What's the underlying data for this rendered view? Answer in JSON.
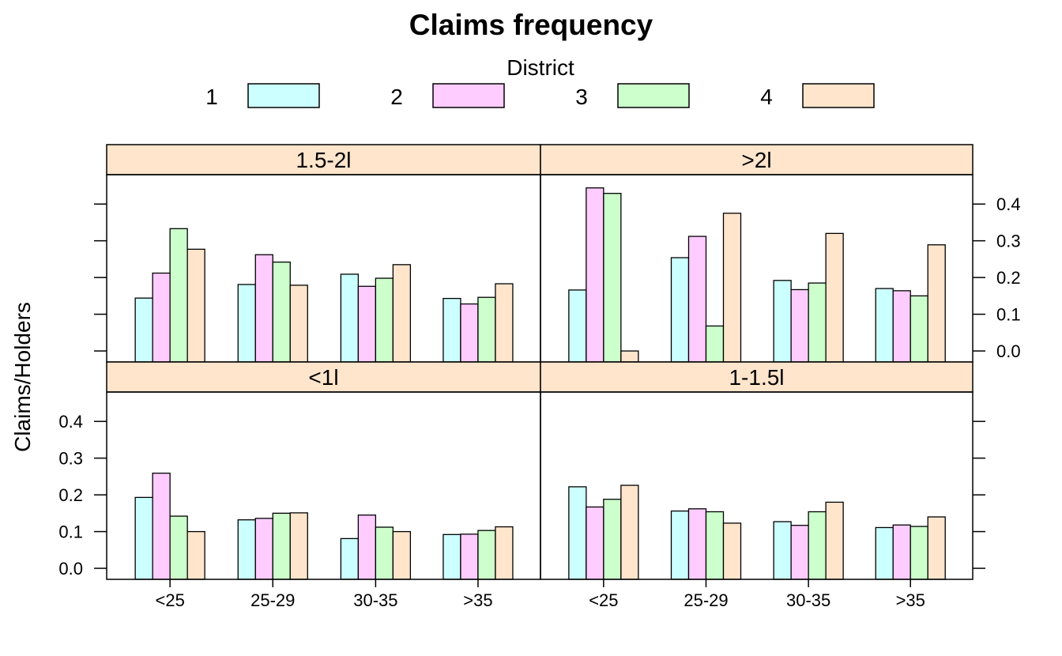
{
  "chart_data": {
    "type": "bar",
    "title": "Claims frequency",
    "ylabel": "Claims/Holders",
    "xlabel": "",
    "ylim": [
      -0.03,
      0.48
    ],
    "yticks": [
      0.0,
      0.1,
      0.2,
      0.3,
      0.4
    ],
    "ytick_labels": [
      "0.0",
      "0.1",
      "0.2",
      "0.3",
      "0.4"
    ],
    "grid": false,
    "legend": {
      "title": "District",
      "placement": "top",
      "entries": [
        "1",
        "2",
        "3",
        "4"
      ]
    },
    "colors": [
      "#ccffff",
      "#ffccff",
      "#ccffcc",
      "#ffe5cc"
    ],
    "strip_color": "#ffe5cc",
    "categories": [
      "<25",
      "25-29",
      "30-35",
      ">35"
    ],
    "panels": [
      {
        "label": "1.5-2l",
        "series": [
          {
            "name": "1",
            "values": [
              0.144,
              0.181,
              0.209,
              0.143
            ]
          },
          {
            "name": "2",
            "values": [
              0.212,
              0.262,
              0.176,
              0.128
            ]
          },
          {
            "name": "3",
            "values": [
              0.333,
              0.242,
              0.198,
              0.146
            ]
          },
          {
            "name": "4",
            "values": [
              0.277,
              0.179,
              0.235,
              0.183
            ]
          }
        ]
      },
      {
        "label": ">2l",
        "series": [
          {
            "name": "1",
            "values": [
              0.166,
              0.254,
              0.192,
              0.17
            ]
          },
          {
            "name": "2",
            "values": [
              0.444,
              0.312,
              0.167,
              0.164
            ]
          },
          {
            "name": "3",
            "values": [
              0.429,
              0.068,
              0.185,
              0.15
            ]
          },
          {
            "name": "4",
            "values": [
              0.0,
              0.375,
              0.32,
              0.289
            ]
          }
        ]
      },
      {
        "label": "<1l",
        "series": [
          {
            "name": "1",
            "values": [
              0.193,
              0.132,
              0.081,
              0.092
            ]
          },
          {
            "name": "2",
            "values": [
              0.259,
              0.136,
              0.145,
              0.093
            ]
          },
          {
            "name": "3",
            "values": [
              0.142,
              0.15,
              0.112,
              0.103
            ]
          },
          {
            "name": "4",
            "values": [
              0.1,
              0.151,
              0.1,
              0.113
            ]
          }
        ]
      },
      {
        "label": "1-1.5l",
        "series": [
          {
            "name": "1",
            "values": [
              0.222,
              0.156,
              0.127,
              0.111
            ]
          },
          {
            "name": "2",
            "values": [
              0.167,
              0.162,
              0.117,
              0.118
            ]
          },
          {
            "name": "3",
            "values": [
              0.188,
              0.154,
              0.154,
              0.114
            ]
          },
          {
            "name": "4",
            "values": [
              0.226,
              0.123,
              0.18,
              0.14
            ]
          }
        ]
      }
    ]
  }
}
